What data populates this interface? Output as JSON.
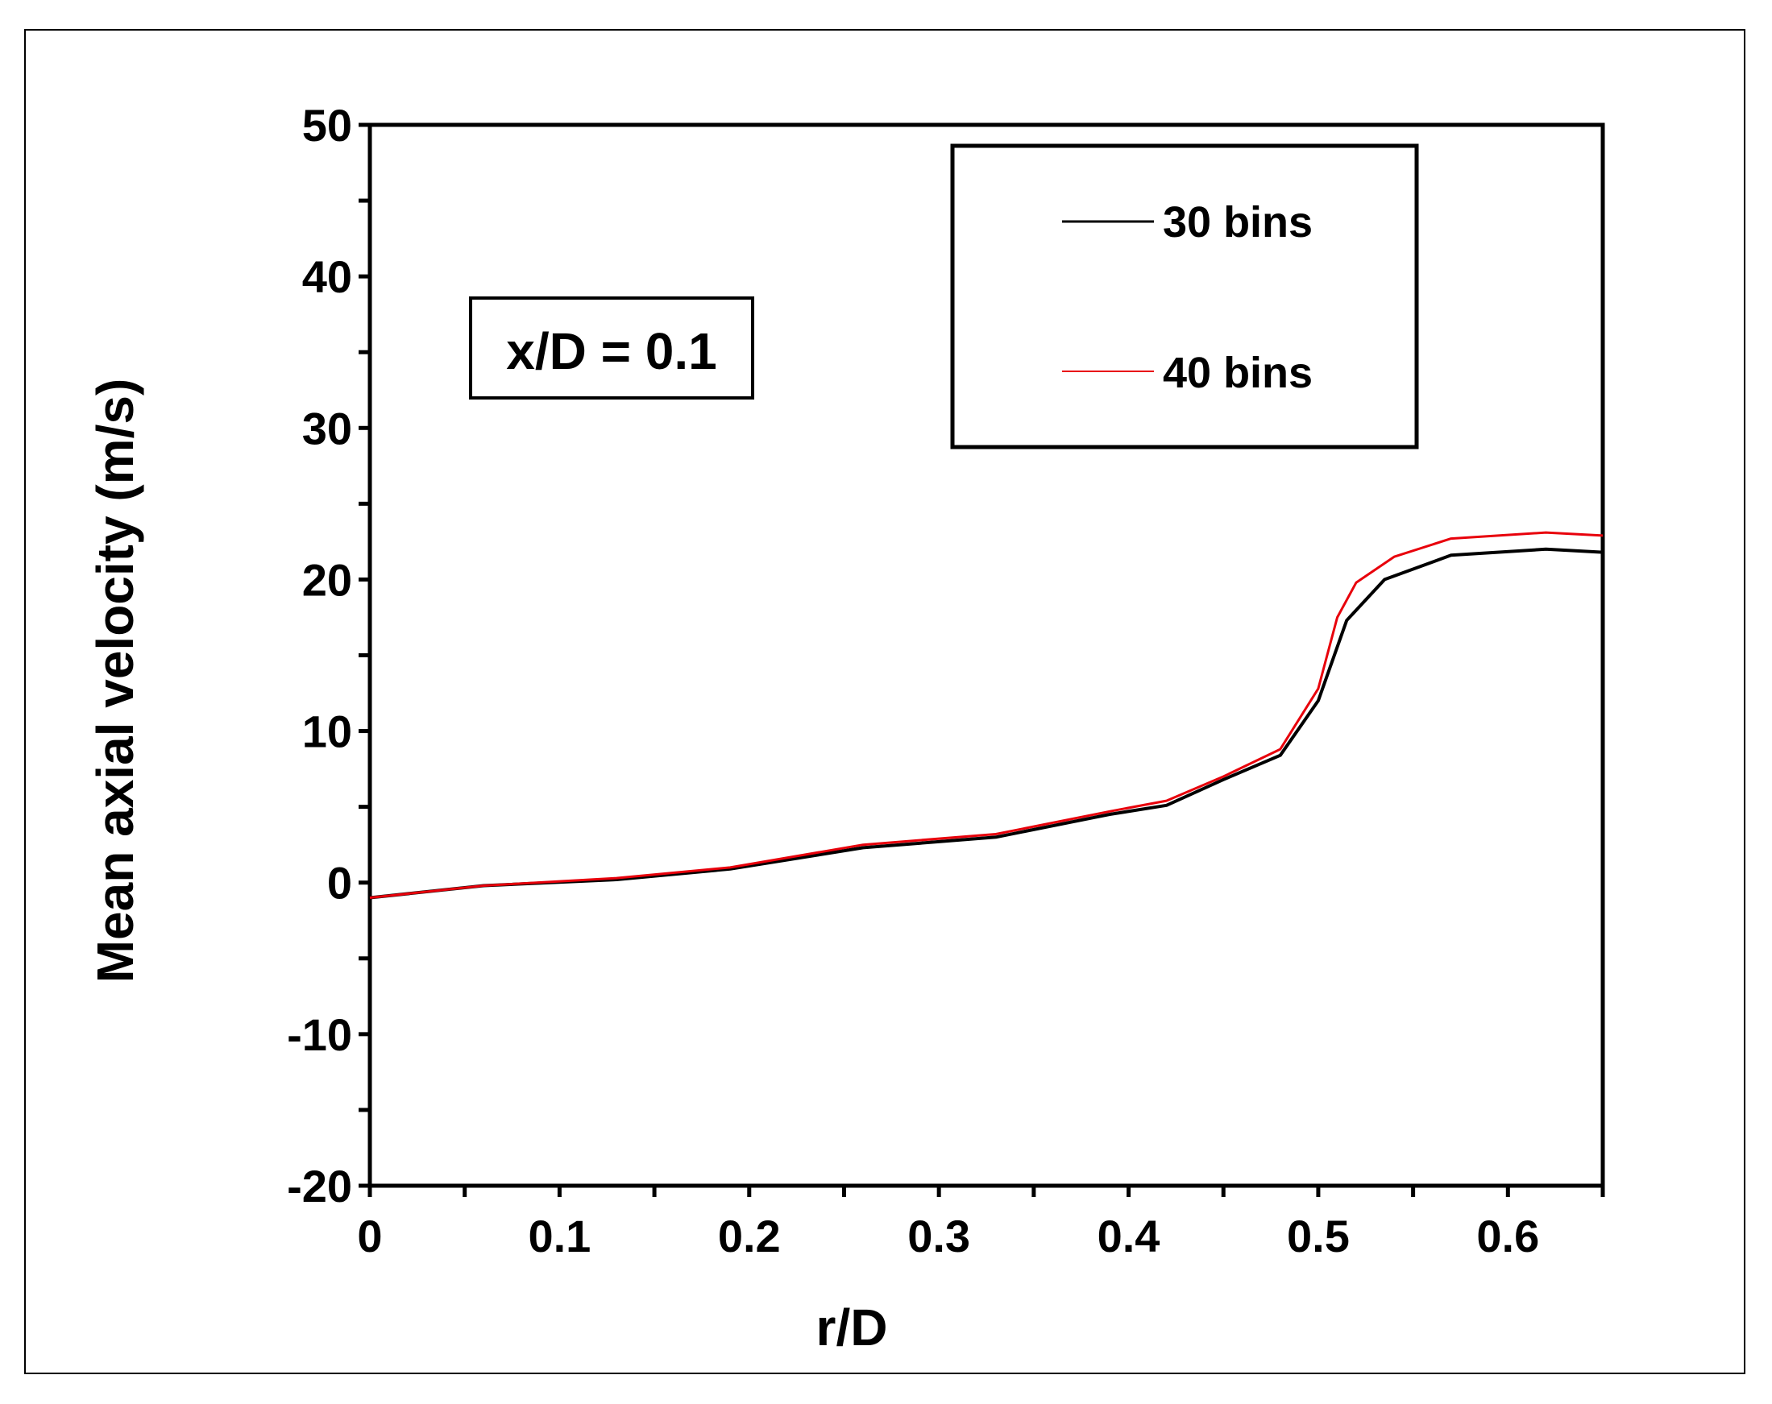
{
  "chart_data": {
    "type": "line",
    "xlabel": "r/D",
    "ylabel": "Mean axial velocity (m/s)",
    "xlim": [
      0,
      0.65
    ],
    "ylim": [
      -20,
      50
    ],
    "xticks": [
      0,
      0.1,
      0.2,
      0.3,
      0.4,
      0.5,
      0.6
    ],
    "xtick_labels": [
      "0",
      "0.1",
      "0.2",
      "0.3",
      "0.4",
      "0.5",
      "0.6"
    ],
    "yticks": [
      -20,
      -10,
      0,
      10,
      20,
      30,
      40,
      50
    ],
    "ytick_labels": [
      "-20",
      "-10",
      "0",
      "10",
      "20",
      "30",
      "40",
      "50"
    ],
    "grid": false,
    "legend_position": "top-right",
    "annotation": "x/D = 0.1",
    "series": [
      {
        "name": "30 bins",
        "color": "#000000",
        "x": [
          0,
          0.06,
          0.13,
          0.19,
          0.26,
          0.33,
          0.39,
          0.42,
          0.45,
          0.48,
          0.5,
          0.515,
          0.535,
          0.57,
          0.62,
          0.65
        ],
        "y": [
          -1.0,
          -0.2,
          0.2,
          0.9,
          2.3,
          3.0,
          4.5,
          5.1,
          6.8,
          8.4,
          12.0,
          17.3,
          20.0,
          21.6,
          22.0,
          21.8
        ]
      },
      {
        "name": "40 bins",
        "color": "#e8000b",
        "x": [
          0,
          0.06,
          0.13,
          0.19,
          0.26,
          0.33,
          0.39,
          0.42,
          0.45,
          0.48,
          0.5,
          0.51,
          0.52,
          0.54,
          0.57,
          0.62,
          0.65
        ],
        "y": [
          -1.0,
          -0.2,
          0.3,
          1.0,
          2.5,
          3.2,
          4.7,
          5.4,
          7.0,
          8.8,
          12.8,
          17.5,
          19.8,
          21.5,
          22.7,
          23.1,
          22.9
        ]
      }
    ]
  }
}
